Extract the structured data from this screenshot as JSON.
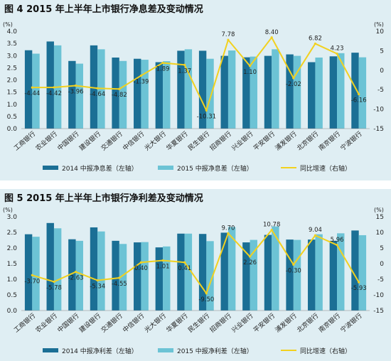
{
  "charts": [
    {
      "title": "图 4  2015 年上半年上市银行净息差及变动情况",
      "chart_data": {
        "type": "bar",
        "title": "图 4  2015 年上半年上市银行净息差及变动情况",
        "categories": [
          "工商银行",
          "农业银行",
          "中国银行",
          "建设银行",
          "交通银行",
          "中信银行",
          "光大银行",
          "华夏银行",
          "民生银行",
          "招商银行",
          "兴业银行",
          "平安银行",
          "浦发银行",
          "北京银行",
          "南京银行",
          "宁波银行"
        ],
        "left_axis": {
          "unit": "(%)",
          "ylim": [
            0,
            4.0
          ],
          "ticks": [
            "0.0",
            "0.5",
            "1.0",
            "1.5",
            "2.0",
            "2.5",
            "3.0",
            "3.5",
            "4.0"
          ]
        },
        "right_axis": {
          "unit": "(%)",
          "ylim": [
            -15,
            10
          ],
          "ticks": [
            "10",
            "5",
            "0",
            "-5",
            "-10",
            "-15"
          ]
        },
        "series": [
          {
            "name": "2014 中报净息差（左轴）",
            "type": "bar",
            "axis": "left",
            "color": "#1b6f95",
            "values": [
              3.22,
              3.58,
              2.78,
              3.42,
              2.92,
              2.87,
              2.73,
              3.2,
              3.2,
              2.99,
              2.93,
              2.99,
              3.05,
              2.73,
              2.97,
              3.12
            ]
          },
          {
            "name": "2015 中报净息差（左轴）",
            "type": "bar",
            "axis": "left",
            "color": "#6cc3d5",
            "values": [
              3.08,
              3.42,
              2.67,
              3.26,
              2.78,
              2.83,
              2.77,
              3.26,
              2.87,
              3.21,
              2.96,
              3.26,
              2.99,
              2.92,
              3.1,
              2.93
            ]
          },
          {
            "name": "同比增速（右轴）",
            "type": "line",
            "axis": "right",
            "color": "#f2d11f",
            "values": [
              -4.44,
              -4.42,
              -3.96,
              -4.64,
              -4.82,
              -1.39,
              1.89,
              1.37,
              -10.31,
              7.78,
              1.1,
              8.4,
              -2.02,
              6.82,
              4.23,
              -6.16
            ],
            "labels": [
              "-4.44",
              "-4.42",
              "-3.96",
              "-4.64",
              "-4.82",
              "-1.39",
              "1.89",
              "1.37",
              "-10.31",
              "7.78",
              "1.10",
              "8.40",
              "-2.02",
              "6.82",
              "4.23",
              "-6.16"
            ]
          }
        ],
        "legend": "bottom",
        "grid": false
      }
    },
    {
      "title": "图 5  2015 年上半年上市银行净利差及变动情况",
      "chart_data": {
        "type": "bar",
        "title": "图 5  2015 年上半年上市银行净利差及变动情况",
        "categories": [
          "工商银行",
          "农业银行",
          "中国银行",
          "建设银行",
          "交通银行",
          "中信银行",
          "光大银行",
          "华夏银行",
          "民生银行",
          "招商银行",
          "兴业银行",
          "平安银行",
          "浦发银行",
          "北京银行",
          "南京银行",
          "宁波银行"
        ],
        "left_axis": {
          "unit": "(%)",
          "ylim": [
            0,
            3.0
          ],
          "ticks": [
            "0.0",
            "0.5",
            "1.0",
            "1.5",
            "2.0",
            "2.5",
            "3.0"
          ]
        },
        "right_axis": {
          "unit": "(%)",
          "ylim": [
            -15,
            15
          ],
          "ticks": [
            "15",
            "10",
            "5",
            "0",
            "-5",
            "-10",
            "-15"
          ]
        },
        "series": [
          {
            "name": "2014 中报净利差（左轴）",
            "type": "bar",
            "axis": "left",
            "color": "#1b6f95",
            "values": [
              2.44,
              2.8,
              2.28,
              2.66,
              2.23,
              2.18,
              2.02,
              2.46,
              2.45,
              2.49,
              2.18,
              2.42,
              2.27,
              2.27,
              2.23,
              2.56
            ]
          },
          {
            "name": "2015 中报净利差（左轴）",
            "type": "bar",
            "axis": "left",
            "color": "#6cc3d5",
            "values": [
              2.36,
              2.63,
              2.23,
              2.53,
              2.13,
              2.19,
              2.05,
              2.46,
              2.22,
              2.67,
              2.26,
              2.69,
              2.26,
              2.44,
              2.47,
              2.41
            ]
          },
          {
            "name": "同比增速（右轴）",
            "type": "line",
            "axis": "right",
            "color": "#f2d11f",
            "values": [
              -3.7,
              -5.78,
              -2.63,
              -5.34,
              -4.55,
              0.4,
              1.01,
              0.41,
              -9.5,
              9.7,
              2.26,
              10.78,
              -0.3,
              9.04,
              5.96,
              -5.93
            ],
            "labels": [
              "-3.70",
              "-5.78",
              "-2.63",
              "-5.34",
              "-4.55",
              "0.40",
              "1.01",
              "0.41",
              "-9.50",
              "9.70",
              "2.26",
              "10.78",
              "-0.30",
              "9.04",
              "5.96",
              "-5.93"
            ]
          }
        ],
        "legend": "bottom",
        "grid": false
      }
    }
  ]
}
